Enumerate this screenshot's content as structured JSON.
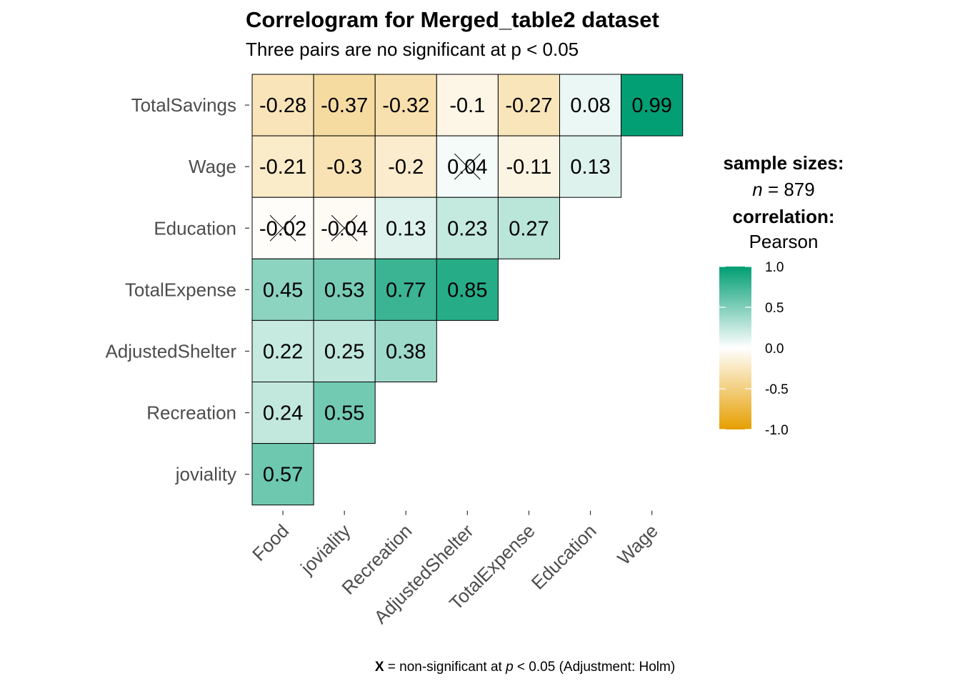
{
  "chart_data": {
    "type": "heatmap",
    "title": "Correlogram for Merged_table2 dataset",
    "subtitle": "Three pairs are no significant at p < 0.05",
    "row_labels": [
      "TotalSavings",
      "Wage",
      "Education",
      "TotalExpense",
      "AdjustedShelter",
      "Recreation",
      "joviality"
    ],
    "col_labels": [
      "Food",
      "joviality",
      "Recreation",
      "AdjustedShelter",
      "TotalExpense",
      "Education",
      "Wage"
    ],
    "cells": [
      {
        "row": "TotalSavings",
        "col": "Food",
        "value": -0.28,
        "label": "-0.28",
        "nonsig": false
      },
      {
        "row": "TotalSavings",
        "col": "joviality",
        "value": -0.37,
        "label": "-0.37",
        "nonsig": false
      },
      {
        "row": "TotalSavings",
        "col": "Recreation",
        "value": -0.32,
        "label": "-0.32",
        "nonsig": false
      },
      {
        "row": "TotalSavings",
        "col": "AdjustedShelter",
        "value": -0.1,
        "label": "-0.1",
        "nonsig": false
      },
      {
        "row": "TotalSavings",
        "col": "TotalExpense",
        "value": -0.27,
        "label": "-0.27",
        "nonsig": false
      },
      {
        "row": "TotalSavings",
        "col": "Education",
        "value": 0.08,
        "label": "0.08",
        "nonsig": false
      },
      {
        "row": "TotalSavings",
        "col": "Wage",
        "value": 0.99,
        "label": "0.99",
        "nonsig": false
      },
      {
        "row": "Wage",
        "col": "Food",
        "value": -0.21,
        "label": "-0.21",
        "nonsig": false
      },
      {
        "row": "Wage",
        "col": "joviality",
        "value": -0.3,
        "label": "-0.3",
        "nonsig": false
      },
      {
        "row": "Wage",
        "col": "Recreation",
        "value": -0.2,
        "label": "-0.2",
        "nonsig": false
      },
      {
        "row": "Wage",
        "col": "AdjustedShelter",
        "value": 0.04,
        "label": "0.04",
        "nonsig": true
      },
      {
        "row": "Wage",
        "col": "TotalExpense",
        "value": -0.11,
        "label": "-0.11",
        "nonsig": false
      },
      {
        "row": "Wage",
        "col": "Education",
        "value": 0.13,
        "label": "0.13",
        "nonsig": false
      },
      {
        "row": "Education",
        "col": "Food",
        "value": -0.02,
        "label": "-0.02",
        "nonsig": true
      },
      {
        "row": "Education",
        "col": "joviality",
        "value": -0.04,
        "label": "-0.04",
        "nonsig": true
      },
      {
        "row": "Education",
        "col": "Recreation",
        "value": 0.13,
        "label": "0.13",
        "nonsig": false
      },
      {
        "row": "Education",
        "col": "AdjustedShelter",
        "value": 0.23,
        "label": "0.23",
        "nonsig": false
      },
      {
        "row": "Education",
        "col": "TotalExpense",
        "value": 0.27,
        "label": "0.27",
        "nonsig": false
      },
      {
        "row": "TotalExpense",
        "col": "Food",
        "value": 0.45,
        "label": "0.45",
        "nonsig": false
      },
      {
        "row": "TotalExpense",
        "col": "joviality",
        "value": 0.53,
        "label": "0.53",
        "nonsig": false
      },
      {
        "row": "TotalExpense",
        "col": "Recreation",
        "value": 0.77,
        "label": "0.77",
        "nonsig": false
      },
      {
        "row": "TotalExpense",
        "col": "AdjustedShelter",
        "value": 0.85,
        "label": "0.85",
        "nonsig": false
      },
      {
        "row": "AdjustedShelter",
        "col": "Food",
        "value": 0.22,
        "label": "0.22",
        "nonsig": false
      },
      {
        "row": "AdjustedShelter",
        "col": "joviality",
        "value": 0.25,
        "label": "0.25",
        "nonsig": false
      },
      {
        "row": "AdjustedShelter",
        "col": "Recreation",
        "value": 0.38,
        "label": "0.38",
        "nonsig": false
      },
      {
        "row": "Recreation",
        "col": "Food",
        "value": 0.24,
        "label": "0.24",
        "nonsig": false
      },
      {
        "row": "Recreation",
        "col": "joviality",
        "value": 0.55,
        "label": "0.55",
        "nonsig": false
      },
      {
        "row": "joviality",
        "col": "Food",
        "value": 0.57,
        "label": "0.57",
        "nonsig": false
      }
    ],
    "colorbar": {
      "ticks": [
        1.0,
        0.5,
        0.0,
        -0.5,
        -1.0
      ],
      "tick_labels": [
        "1.0",
        "0.5",
        "0.0",
        "-0.5",
        "-1.0"
      ],
      "high_color": "#009E73",
      "mid_color": "#FFFFFF",
      "low_color": "#E69F00"
    },
    "legend": {
      "sample_sizes_title": "sample sizes:",
      "n_symbol": "n",
      "n_value": " = 879",
      "correlation_title": "correlation:",
      "correlation_method": "Pearson"
    },
    "caption": {
      "symbol": "X",
      "text_before": " = non-significant at ",
      "p_symbol": "p",
      "text_after": " < 0.05 (Adjustment: Holm)"
    },
    "ylim": [
      -1.0,
      1.0
    ],
    "legend_position": "right"
  }
}
